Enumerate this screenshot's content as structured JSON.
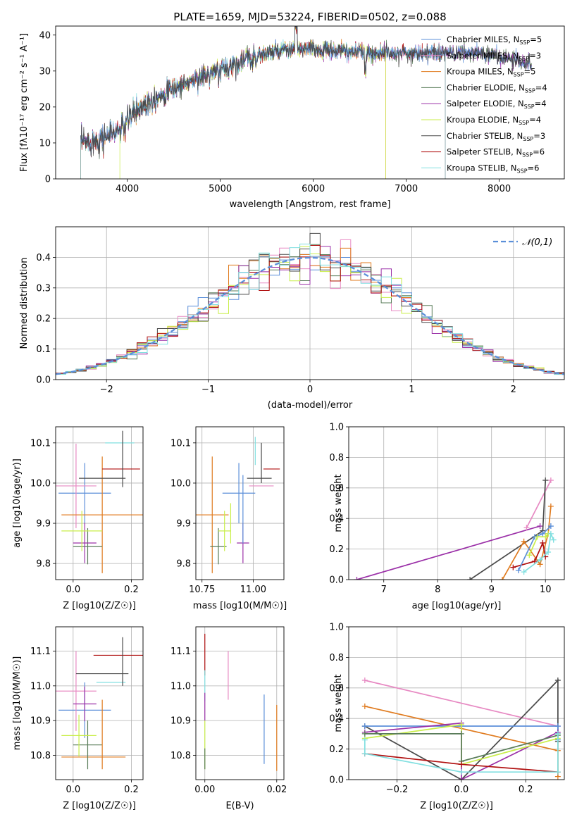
{
  "figure_title": "PLATE=1659, MJD=53224, FIBERID=0502, z=0.088",
  "legend_models": [
    {
      "label": "Chabrier MILES, N",
      "sub": "SSP",
      "tail": "=5",
      "color": "#5b8fd9"
    },
    {
      "label": "Salpeter MILES, N",
      "sub": "SSP",
      "tail": "=3",
      "color": "#e78ac3"
    },
    {
      "label": "Kroupa MILES, N",
      "sub": "SSP",
      "tail": "=5",
      "color": "#e07b1f"
    },
    {
      "label": "Chabrier ELODIE, N",
      "sub": "SSP",
      "tail": "=4",
      "color": "#5a7d5a"
    },
    {
      "label": "Salpeter ELODIE, N",
      "sub": "SSP",
      "tail": "=4",
      "color": "#9b30a8"
    },
    {
      "label": "Kroupa ELODIE, N",
      "sub": "SSP",
      "tail": "=4",
      "color": "#c9ee4a"
    },
    {
      "label": "Chabrier STELIB, N",
      "sub": "SSP",
      "tail": "=3",
      "color": "#4a4a4a"
    },
    {
      "label": "Salpeter STELIB, N",
      "sub": "SSP",
      "tail": "=6",
      "color": "#b01010"
    },
    {
      "label": "Kroupa STELIB, N",
      "sub": "SSP",
      "tail": "=6",
      "color": "#80dfe0"
    }
  ],
  "chart_data": [
    {
      "id": "spectrum",
      "type": "line",
      "xlabel": "wavelength [Angstrom, rest frame]",
      "ylabel": "Flux [f",
      "ylabel_full": "Flux [fλ10⁻¹⁷ erg cm⁻² s⁻¹ A⁻¹]",
      "xlim": [
        3230,
        8700
      ],
      "ylim": [
        0,
        42.5
      ],
      "xticks": [
        4000,
        5000,
        6000,
        7000,
        8000
      ],
      "yticks": [
        0,
        10,
        20,
        30,
        40
      ],
      "continuum_knots": [
        [
          3500,
          10
        ],
        [
          3700,
          11
        ],
        [
          3950,
          14
        ],
        [
          4050,
          18
        ],
        [
          4250,
          22
        ],
        [
          4500,
          25
        ],
        [
          4750,
          28
        ],
        [
          5000,
          30
        ],
        [
          5250,
          33
        ],
        [
          5500,
          35
        ],
        [
          5800,
          36
        ],
        [
          6000,
          36
        ],
        [
          6300,
          35.5
        ],
        [
          6600,
          35
        ],
        [
          7000,
          35
        ],
        [
          7400,
          35
        ],
        [
          7800,
          35
        ],
        [
          8200,
          33
        ],
        [
          8350,
          32
        ]
      ],
      "spectrum_range": [
        3500,
        8350
      ],
      "model_cutoffs": [
        {
          "model": "Salpeter MILES",
          "low": 3500,
          "high": 7420
        },
        {
          "model": "Kroupa MILES",
          "low": 3500,
          "high": 6780
        },
        {
          "model": "Kroupa ELODIE",
          "low": 3920,
          "high": 6780
        },
        {
          "model": "Salpeter STELIB",
          "low": 3500,
          "high": 7420
        },
        {
          "model": "Kroupa STELIB",
          "low": 3500,
          "high": 7420
        }
      ]
    },
    {
      "id": "residuals",
      "type": "histogram",
      "xlabel": "(data-model)/error",
      "ylabel": "Normed distribution",
      "xlim": [
        -2.5,
        2.5
      ],
      "ylim": [
        0,
        0.5
      ],
      "xticks": [
        -2,
        -1,
        0,
        1,
        2
      ],
      "yticks": [
        0.0,
        0.1,
        0.2,
        0.3,
        0.4
      ],
      "bin_width": 0.1,
      "reference_curve": {
        "label": "N(0,1)",
        "mean": 0,
        "sigma": 1,
        "color": "#5b8fd9"
      }
    },
    {
      "id": "age_vs_Z",
      "type": "errorbar",
      "xlabel": "Z [log10(Z/Z☉)]",
      "ylabel": "age [log10(age/yr)]",
      "xlim": [
        -0.06,
        0.24
      ],
      "ylim": [
        9.76,
        10.14
      ],
      "xticks": [
        0.0,
        0.2
      ],
      "yticks": [
        9.8,
        9.9,
        10.0,
        10.1
      ],
      "points": [
        {
          "x": 0.04,
          "xerr": 0.09,
          "y": 9.975,
          "yerr": 0.075,
          "color": "#5b8fd9"
        },
        {
          "x": 0.01,
          "xerr": 0.07,
          "y": 9.993,
          "yerr": 0.105,
          "color": "#e78ac3"
        },
        {
          "x": 0.1,
          "xerr": 0.14,
          "y": 9.921,
          "yerr": 0.145,
          "color": "#e07b1f"
        },
        {
          "x": 0.05,
          "xerr": 0.05,
          "y": 9.843,
          "yerr": 0.045,
          "color": "#5a7d5a"
        },
        {
          "x": 0.04,
          "xerr": 0.04,
          "y": 9.851,
          "yerr": 0.05,
          "color": "#9b30a8"
        },
        {
          "x": 0.03,
          "xerr": 0.07,
          "y": 9.881,
          "yerr": 0.05,
          "color": "#c9ee4a"
        },
        {
          "x": 0.1,
          "xerr": 0.08,
          "y": 10.012,
          "yerr": 0.0,
          "color": "#4a4a4a"
        },
        {
          "x": 0.165,
          "xerr": 0.065,
          "y": 10.035,
          "yerr": 0.0,
          "color": "#b01010"
        },
        {
          "x": 0.16,
          "xerr": 0.05,
          "y": 10.1,
          "yerr": 0.0,
          "color": "#80dfe0"
        },
        {
          "x": 0.17,
          "xerr": 0.0,
          "y": 10.06,
          "yerr": 0.07,
          "color": "#4a4a4a"
        }
      ]
    },
    {
      "id": "age_vs_mass",
      "type": "errorbar",
      "xlabel": "mass [log10(M/M☉)]",
      "ylabel": "",
      "xlim": [
        10.72,
        11.15
      ],
      "ylim": [
        9.76,
        10.14
      ],
      "xticks": [
        10.75,
        11.0
      ],
      "yticks": [
        9.8,
        9.9,
        10.0,
        10.1
      ],
      "points": [
        {
          "x": 10.93,
          "xerr": 0.08,
          "y": 9.975,
          "yerr": 0.075,
          "color": "#5b8fd9"
        },
        {
          "x": 11.04,
          "xerr": 0.06,
          "y": 9.993,
          "yerr": 0.0,
          "color": "#e78ac3"
        },
        {
          "x": 10.8,
          "xerr": 0.08,
          "y": 9.921,
          "yerr": 0.145,
          "color": "#e07b1f"
        },
        {
          "x": 10.83,
          "xerr": 0.04,
          "y": 9.843,
          "yerr": 0.045,
          "color": "#5a7d5a"
        },
        {
          "x": 10.95,
          "xerr": 0.03,
          "y": 9.851,
          "yerr": 0.05,
          "color": "#9b30a8"
        },
        {
          "x": 10.86,
          "xerr": 0.03,
          "y": 9.881,
          "yerr": 0.05,
          "color": "#c9ee4a"
        },
        {
          "x": 11.03,
          "xerr": 0.06,
          "y": 10.012,
          "yerr": 0.0,
          "color": "#4a4a4a"
        },
        {
          "x": 11.09,
          "xerr": 0.04,
          "y": 10.035,
          "yerr": 0.0,
          "color": "#b01010"
        },
        {
          "x": 11.01,
          "xerr": 0.0,
          "y": 10.08,
          "yerr": 0.035,
          "color": "#80dfe0"
        },
        {
          "x": 11.04,
          "xerr": 0.0,
          "y": 10.05,
          "yerr": 0.05,
          "color": "#4a4a4a"
        },
        {
          "x": 10.95,
          "xerr": 0.0,
          "y": 9.935,
          "yerr": 0.085,
          "color": "#5b8fd9"
        },
        {
          "x": 10.89,
          "xerr": 0.0,
          "y": 9.9,
          "yerr": 0.05,
          "color": "#c9ee4a"
        }
      ]
    },
    {
      "id": "weight_vs_age",
      "type": "line",
      "xlabel": "age [log10(age/yr)]",
      "ylabel": "mass weight",
      "xlim": [
        6.35,
        10.35
      ],
      "ylim": [
        0,
        1
      ],
      "xticks": [
        7,
        8,
        9,
        10
      ],
      "yticks": [
        0.0,
        0.2,
        0.4,
        0.6,
        0.8,
        1.0
      ],
      "series": [
        {
          "color": "#9b30a8",
          "x": [
            6.5,
            9.9
          ],
          "y": [
            0.0,
            0.35
          ]
        },
        {
          "color": "#e78ac3",
          "x": [
            9.65,
            10.1
          ],
          "y": [
            0.34,
            0.65
          ]
        },
        {
          "color": "#4a4a4a",
          "x": [
            8.6,
            9.95,
            10.0
          ],
          "y": [
            0.0,
            0.32,
            0.65
          ]
        },
        {
          "color": "#e07b1f",
          "x": [
            9.2,
            9.6,
            9.9,
            10.05,
            10.1
          ],
          "y": [
            0.0,
            0.25,
            0.1,
            0.3,
            0.48
          ]
        },
        {
          "color": "#b01010",
          "x": [
            9.4,
            9.8,
            9.95,
            10.0
          ],
          "y": [
            0.08,
            0.12,
            0.24,
            0.15
          ]
        },
        {
          "color": "#5b8fd9",
          "x": [
            9.5,
            9.8,
            9.95,
            10.1
          ],
          "y": [
            0.06,
            0.28,
            0.3,
            0.35
          ]
        },
        {
          "color": "#c9ee4a",
          "x": [
            9.7,
            9.85,
            10.0,
            10.05
          ],
          "y": [
            0.16,
            0.28,
            0.28,
            0.3
          ]
        },
        {
          "color": "#80dfe0",
          "x": [
            9.6,
            9.9,
            10.05,
            10.1,
            10.15
          ],
          "y": [
            0.05,
            0.13,
            0.18,
            0.3,
            0.26
          ]
        }
      ]
    },
    {
      "id": "mass_vs_Z",
      "type": "errorbar",
      "xlabel": "Z [log10(Z/Z☉)]",
      "ylabel": "mass [log10(M/M☉)]",
      "xlim": [
        -0.06,
        0.24
      ],
      "ylim": [
        10.73,
        11.17
      ],
      "xticks": [
        0.0,
        0.2
      ],
      "yticks": [
        10.8,
        10.9,
        11.0,
        11.1
      ],
      "points": [
        {
          "x": 0.04,
          "xerr": 0.09,
          "y": 10.93,
          "yerr": 0.08,
          "color": "#5b8fd9"
        },
        {
          "x": 0.01,
          "xerr": 0.07,
          "y": 10.985,
          "yerr": 0.115,
          "color": "#e78ac3"
        },
        {
          "x": 0.07,
          "xerr": 0.11,
          "y": 10.795,
          "yerr": 0.0,
          "color": "#e07b1f"
        },
        {
          "x": 0.05,
          "xerr": 0.05,
          "y": 10.83,
          "yerr": 0.07,
          "color": "#5a7d5a"
        },
        {
          "x": 0.04,
          "xerr": 0.04,
          "y": 10.948,
          "yerr": 0.05,
          "color": "#9b30a8"
        },
        {
          "x": 0.02,
          "xerr": 0.06,
          "y": 10.857,
          "yerr": 0.06,
          "color": "#c9ee4a"
        },
        {
          "x": 0.1,
          "xerr": 0.09,
          "y": 11.035,
          "yerr": 0.0,
          "color": "#4a4a4a"
        },
        {
          "x": 0.16,
          "xerr": 0.09,
          "y": 11.088,
          "yerr": 0.0,
          "color": "#b01010"
        },
        {
          "x": 0.13,
          "xerr": 0.05,
          "y": 11.01,
          "yerr": 0.0,
          "color": "#80dfe0"
        },
        {
          "x": 0.17,
          "xerr": 0.0,
          "y": 11.07,
          "yerr": 0.07,
          "color": "#4a4a4a"
        },
        {
          "x": 0.1,
          "xerr": 0.0,
          "y": 10.86,
          "yerr": 0.1,
          "color": "#e07b1f"
        }
      ]
    },
    {
      "id": "mass_vs_EBV",
      "type": "errorbar",
      "xlabel": "E(B-V)",
      "ylabel": "",
      "xlim": [
        -0.0025,
        0.022
      ],
      "ylim": [
        10.73,
        11.17
      ],
      "xticks": [
        0.0,
        0.02
      ],
      "yticks": [
        10.8,
        10.9,
        11.0,
        11.1
      ],
      "points": [
        {
          "x": 0.0,
          "xerr": 0.0,
          "y": 11.09,
          "yerr": 0.06,
          "color": "#b01010"
        },
        {
          "x": 0.0,
          "xerr": 0.0,
          "y": 11.0,
          "yerr": 0.045,
          "color": "#80dfe0"
        },
        {
          "x": 0.0,
          "xerr": 0.0,
          "y": 10.94,
          "yerr": 0.04,
          "color": "#9b30a8"
        },
        {
          "x": 0.0,
          "xerr": 0.0,
          "y": 10.83,
          "yerr": 0.07,
          "color": "#c9ee4a"
        },
        {
          "x": 0.0,
          "xerr": 0.0,
          "y": 10.79,
          "yerr": 0.03,
          "color": "#5a7d5a"
        },
        {
          "x": 0.0065,
          "xerr": 0.0,
          "y": 11.03,
          "yerr": 0.07,
          "color": "#e78ac3"
        },
        {
          "x": 0.0165,
          "xerr": 0.0,
          "y": 10.875,
          "yerr": 0.1,
          "color": "#5b8fd9"
        },
        {
          "x": 0.02,
          "xerr": 0.0,
          "y": 10.85,
          "yerr": 0.095,
          "color": "#e07b1f"
        }
      ]
    },
    {
      "id": "weight_vs_Z",
      "type": "line",
      "xlabel": "Z [log10(Z/Z☉)]",
      "ylabel": "mass weight",
      "xlim": [
        -0.35,
        0.32
      ],
      "ylim": [
        0,
        1
      ],
      "xticks": [
        -0.2,
        0.0,
        0.2
      ],
      "yticks": [
        0.0,
        0.2,
        0.4,
        0.6,
        0.8,
        1.0
      ],
      "series": [
        {
          "color": "#e78ac3",
          "x": [
            -0.3,
            0.3
          ],
          "y": [
            0.65,
            0.35
          ]
        },
        {
          "color": "#e07b1f",
          "x": [
            -0.3,
            0.3,
            0.3,
            0.3
          ],
          "y": [
            0.48,
            0.19,
            0.3,
            0.02
          ]
        },
        {
          "color": "#4a4a4a",
          "x": [
            -0.3,
            0.0,
            0.3,
            0.3
          ],
          "y": [
            0.35,
            0.0,
            0.65,
            0.25
          ]
        },
        {
          "color": "#5b8fd9",
          "x": [
            -0.3,
            0.3,
            0.3
          ],
          "y": [
            0.35,
            0.35,
            0.26
          ]
        },
        {
          "color": "#9b30a8",
          "x": [
            -0.3,
            0.0,
            0.0,
            0.3
          ],
          "y": [
            0.31,
            0.37,
            0.0,
            0.31
          ]
        },
        {
          "color": "#c9ee4a",
          "x": [
            -0.3,
            0.0,
            0.0,
            0.3
          ],
          "y": [
            0.27,
            0.36,
            0.1,
            0.27
          ]
        },
        {
          "color": "#5a7d5a",
          "x": [
            -0.3,
            0.0,
            0.0,
            0.3
          ],
          "y": [
            0.3,
            0.3,
            0.12,
            0.29
          ]
        },
        {
          "color": "#b01010",
          "x": [
            -0.3,
            0.0,
            0.3
          ],
          "y": [
            0.17,
            0.1,
            0.05
          ]
        },
        {
          "color": "#80dfe0",
          "x": [
            -0.3,
            -0.3,
            0.0,
            0.3,
            0.3
          ],
          "y": [
            0.26,
            0.17,
            0.05,
            0.05,
            0.3
          ]
        }
      ]
    }
  ]
}
